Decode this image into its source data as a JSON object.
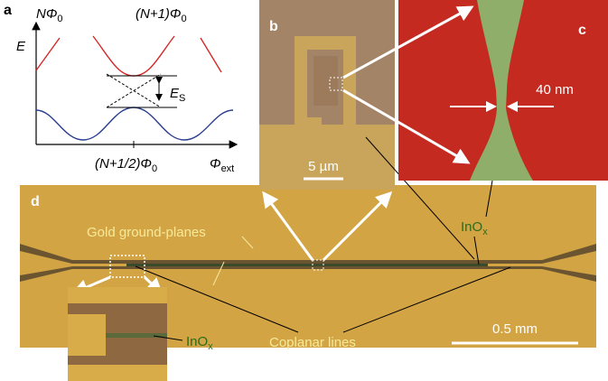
{
  "panels": {
    "a": {
      "label": "a",
      "y_axis": "E",
      "x_axis": {
        "text": "Φ",
        "sub": "ext"
      },
      "curve_left": {
        "text": "NΦ",
        "sub": "0"
      },
      "curve_right": {
        "text": "(N+1)Φ",
        "sub": "0"
      },
      "gap": {
        "text": "E",
        "sub": "S"
      },
      "x_tick": {
        "text": "(N+1/2)Φ",
        "sub": "0"
      }
    },
    "b": {
      "label": "b",
      "scale_bar": "5 µm"
    },
    "c": {
      "label": "c",
      "width_label": "40 nm"
    },
    "d": {
      "label": "d",
      "ground_label": "Gold ground-planes",
      "wire_label": {
        "text": "InO",
        "sub": "x"
      },
      "lines_label": "Coplanar lines",
      "scale_bar": "0.5 mm",
      "inset": {
        "wire_label": {
          "text": "InO",
          "sub": "x"
        }
      }
    }
  }
}
